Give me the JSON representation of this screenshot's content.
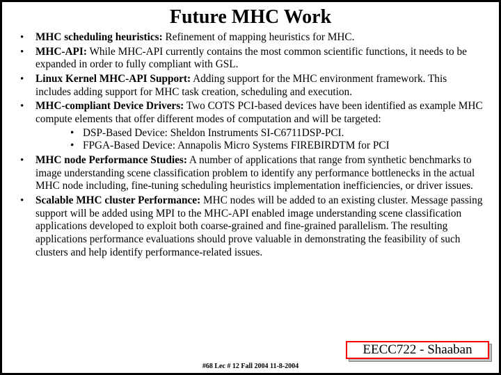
{
  "title": "Future MHC Work",
  "bullets": [
    {
      "lead": "MHC scheduling heuristics:",
      "text": "   Refinement of  mapping heuristics for MHC."
    },
    {
      "lead": "MHC-API:",
      "text": "  While  MHC-API currently contains the most common scientific functions, it needs to be expanded in order to fully compliant with GSL."
    },
    {
      "lead": "Linux Kernel   MHC-API Support:",
      "text": "    Adding support for the MHC environment framework.  This includes adding support for MHC task creation, scheduling and execution."
    },
    {
      "lead": "MHC-compliant  Device Drivers:",
      "text": "     Two  COTS  PCI-based devices have been identified as example MHC compute elements that offer different modes of  computation and will be targeted:",
      "sub": [
        "DSP-Based Device:   Sheldon Instruments SI-C6711DSP-PCI.",
        "FPGA-Based Device:   Annapolis Micro Systems  FIREBIRDTM for PCI"
      ]
    },
    {
      "lead": "MHC node Performance Studies:",
      "text": "   A number of applications that range from synthetic benchmarks to image understanding scene classification problem to identify any performance bottlenecks  in the actual MHC node including,  fine-tuning scheduling heuristics implementation inefficiencies,  or driver issues."
    },
    {
      "lead": "Scalable  MHC cluster Performance:",
      "text": "    MHC nodes will be added to an existing cluster.  Message passing  support will be added using MPI to the MHC-API  enabled  image understanding scene classification  applications developed to exploit both coarse-grained and fine-grained parallelism.  The resulting applications performance evaluations  should prove valuable in demonstrating the feasibility of such clusters and help identify performance-related issues."
    }
  ],
  "badge": "EECC722 - Shaaban",
  "footnote": "#68  Lec # 12   Fall 2004  11-8-2004",
  "colors": {
    "border": "#000000",
    "badge_border": "#ff0000",
    "badge_shadow": "#c0c0c0",
    "background": "#ffffff"
  }
}
